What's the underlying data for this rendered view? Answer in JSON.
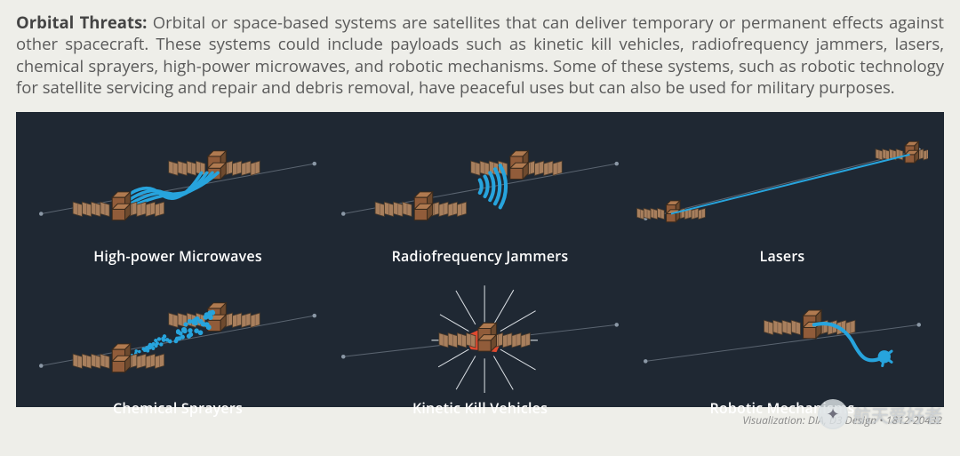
{
  "header": {
    "lead": "Orbital Threats:",
    "body": " Orbital or space-based systems are satellites that can deliver temporary or permanent effects against other spacecraft. These systems could include payloads such as kinetic kill vehicles, radiofrequency jammers, lasers, chemical sprayers, high-power microwaves, and robotic mechanisms. Some of these systems, such as robotic technology for satellite servicing and repair and debris removal, have peaceful uses but can also be used for military purposes."
  },
  "panel": {
    "background_color": "#1f2833",
    "effect_color": "#27a4dd",
    "orbit_color": "#5a6470",
    "orbit_dot_color": "#8b98a6",
    "sat": {
      "body_fill": "#915c3a",
      "body_stroke": "#3a2a1c",
      "panel_fill": "#a87f5d",
      "panel_stroke": "#4a3a2a",
      "panel_line": "#6a5140"
    },
    "items": [
      {
        "label": "High-power Microwaves",
        "type": "microwaves"
      },
      {
        "label": "Radiofrequency Jammers",
        "type": "rf"
      },
      {
        "label": "Lasers",
        "type": "laser"
      },
      {
        "label": "Chemical Sprayers",
        "type": "chemical"
      },
      {
        "label": "Kinetic Kill Vehicles",
        "type": "kinetic"
      },
      {
        "label": "Robotic Mechanisms",
        "type": "robotic"
      }
    ],
    "label_color": "#ffffff",
    "label_fontsize": 16
  },
  "credit": "Visualization: DIA, D3 Design  •  1812-20432",
  "watermark": {
    "text": "航天爱好者"
  }
}
